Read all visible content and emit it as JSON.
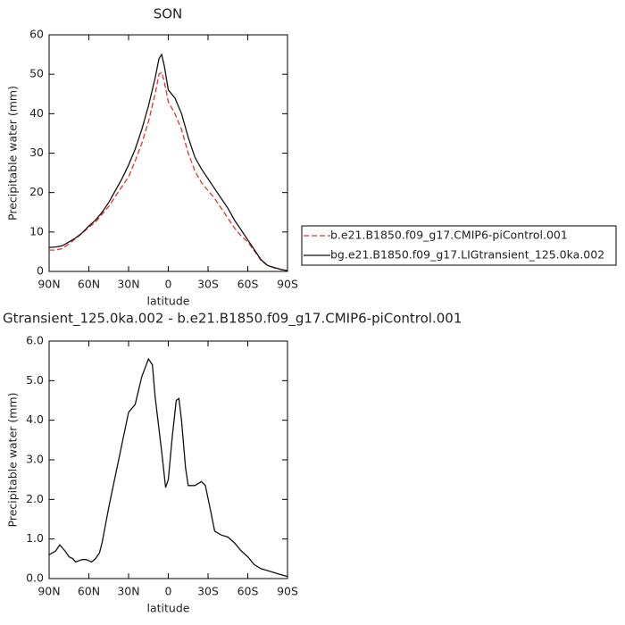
{
  "chart_data": [
    {
      "type": "line",
      "title": "SON",
      "ylabel": "Precipitable water (mm)",
      "xlabel": "latitude",
      "xlim": [
        90,
        -90
      ],
      "xticks": [
        {
          "value": 90,
          "label": "90N"
        },
        {
          "value": 60,
          "label": "60N"
        },
        {
          "value": 30,
          "label": "30N"
        },
        0,
        {
          "value": -30,
          "label": "30S"
        },
        {
          "value": -60,
          "label": "60S"
        },
        {
          "value": -90,
          "label": "90S"
        }
      ],
      "ylim": [
        0,
        60
      ],
      "yticks": [
        0,
        10,
        20,
        30,
        40,
        50,
        60
      ],
      "legend": "right",
      "series": [
        {
          "name": "b.e21.B1850.f09_g17.CMIP6-piControl.001",
          "color": "#e8302a",
          "style": "dashed",
          "x": [
            90,
            85,
            80,
            75,
            70,
            65,
            60,
            55,
            50,
            45,
            40,
            35,
            30,
            25,
            20,
            15,
            10,
            7,
            5,
            3,
            0,
            -5,
            -10,
            -15,
            -20,
            -25,
            -30,
            -35,
            -40,
            -45,
            -50,
            -55,
            -60,
            -65,
            -70,
            -75,
            -80,
            -85,
            -90
          ],
          "values": [
            5.4,
            5.4,
            5.8,
            7,
            8.3,
            9.7,
            11.2,
            12.5,
            14.5,
            16.5,
            19,
            21.5,
            24,
            28,
            32.5,
            38,
            45,
            50,
            50.5,
            48,
            43,
            40,
            36,
            30,
            25.5,
            22.5,
            20.5,
            18.5,
            16,
            13.5,
            11,
            9,
            7.5,
            5.2,
            2.8,
            1.5,
            0.9,
            0.5,
            0.2
          ]
        },
        {
          "name": "bg.e21.B1850.f09_g17.LIGtransient_125.0ka.002",
          "color": "#111111",
          "style": "solid",
          "x": [
            90,
            85,
            80,
            75,
            70,
            65,
            60,
            55,
            50,
            45,
            40,
            35,
            30,
            25,
            20,
            15,
            10,
            7,
            5,
            3,
            0,
            -5,
            -10,
            -15,
            -20,
            -25,
            -30,
            -35,
            -40,
            -45,
            -50,
            -55,
            -60,
            -65,
            -70,
            -75,
            -80,
            -85,
            -90
          ],
          "values": [
            6.1,
            6.2,
            6.5,
            7.5,
            8.5,
            9.8,
            11.5,
            13,
            15,
            17.5,
            20.5,
            23.5,
            27,
            31,
            36,
            42,
            49,
            54,
            55,
            52,
            46,
            44,
            40,
            34,
            29,
            26,
            23.5,
            21,
            18.5,
            16,
            13,
            10.5,
            8,
            5.5,
            3,
            1.5,
            1,
            0.5,
            0.2
          ]
        }
      ]
    },
    {
      "type": "line",
      "title": "Gtransient_125.0ka.002 - b.e21.B1850.f09_g17.CMIP6-piControl.001",
      "ylabel": "Precipitable water (mm)",
      "xlabel": "latitude",
      "xlim": [
        90,
        -90
      ],
      "xticks": [
        {
          "value": 90,
          "label": "90N"
        },
        {
          "value": 60,
          "label": "60N"
        },
        {
          "value": 30,
          "label": "30N"
        },
        0,
        {
          "value": -30,
          "label": "30S"
        },
        {
          "value": -60,
          "label": "60S"
        },
        {
          "value": -90,
          "label": "90S"
        }
      ],
      "ylim": [
        0,
        6
      ],
      "yticks": [
        {
          "value": 0,
          "label": "0.0"
        },
        {
          "value": 1,
          "label": "1.0"
        },
        {
          "value": 2,
          "label": "2.0"
        },
        {
          "value": 3,
          "label": "3.0"
        },
        {
          "value": 4,
          "label": "4.0"
        },
        {
          "value": 5,
          "label": "5.0"
        },
        {
          "value": 6,
          "label": "6.0"
        }
      ],
      "series": [
        {
          "color": "#111111",
          "style": "solid",
          "x": [
            90,
            85,
            82,
            78,
            75,
            72,
            70,
            65,
            62,
            58,
            55,
            52,
            50,
            45,
            40,
            35,
            30,
            25,
            20,
            15,
            12,
            10,
            5,
            2,
            0,
            -3,
            -6,
            -8,
            -10,
            -13,
            -15,
            -20,
            -25,
            -28,
            -32,
            -35,
            -40,
            -45,
            -50,
            -55,
            -60,
            -65,
            -70,
            -75,
            -80,
            -85,
            -90
          ],
          "values": [
            0.6,
            0.7,
            0.85,
            0.7,
            0.55,
            0.5,
            0.42,
            0.48,
            0.48,
            0.42,
            0.5,
            0.65,
            0.9,
            1.8,
            2.6,
            3.4,
            4.2,
            4.4,
            5.1,
            5.55,
            5.4,
            4.6,
            3.2,
            2.3,
            2.5,
            3.6,
            4.5,
            4.55,
            4.0,
            2.8,
            2.35,
            2.35,
            2.45,
            2.35,
            1.7,
            1.2,
            1.1,
            1.05,
            0.9,
            0.7,
            0.55,
            0.35,
            0.25,
            0.2,
            0.15,
            0.1,
            0.05
          ]
        }
      ]
    }
  ]
}
